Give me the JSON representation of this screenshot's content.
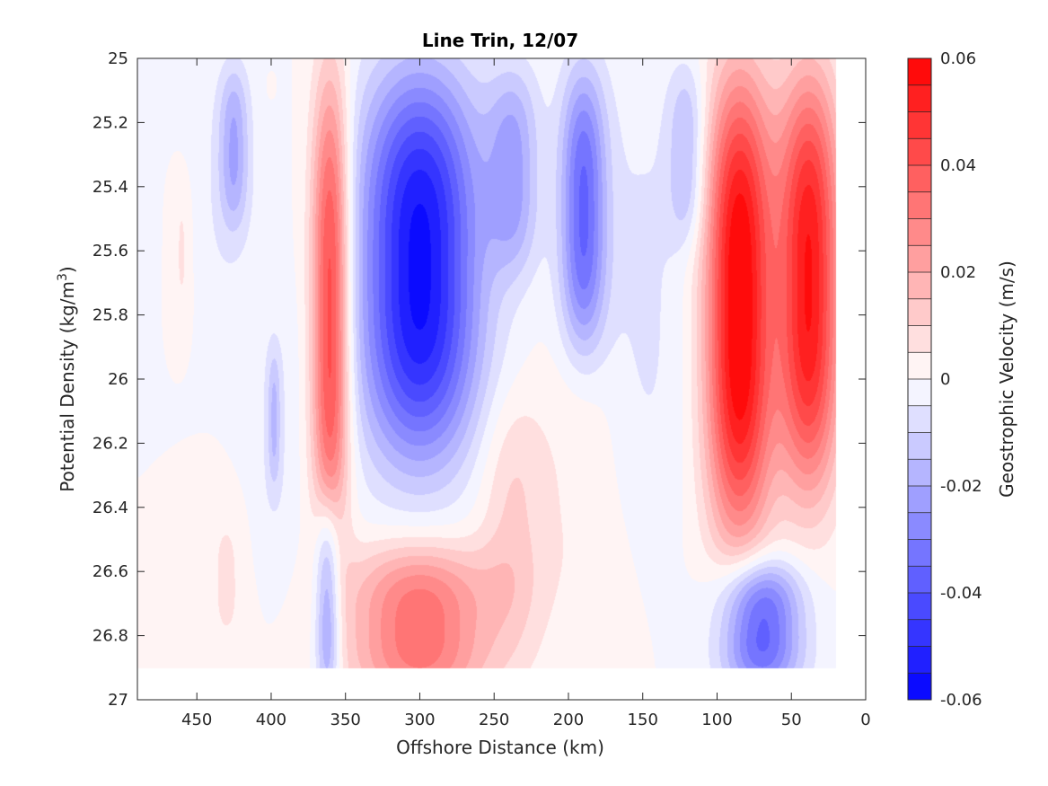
{
  "chart_data": {
    "type": "heatmap",
    "subtype": "filled-contour",
    "title": "Line Trin, 12/07",
    "xlabel": "Offshore Distance (km)",
    "ylabel": "Potential Density (kg/m",
    "ylabel_sup": "3",
    "ylabel_close": ")",
    "colorbar_label": "Geostrophic Velocity (m/s)",
    "x_reversed": true,
    "y_reversed": true,
    "xlim": [
      490,
      0
    ],
    "ylim": [
      25,
      27
    ],
    "xticks": [
      450,
      400,
      350,
      300,
      250,
      200,
      150,
      100,
      50,
      0
    ],
    "xtick_labels": [
      "450",
      "400",
      "350",
      "300",
      "250",
      "200",
      "150",
      "100",
      "50",
      "0"
    ],
    "yticks": [
      25,
      25.2,
      25.4,
      25.6,
      25.8,
      26,
      26.2,
      26.4,
      26.6,
      26.8,
      27
    ],
    "ytick_labels": [
      "25",
      "25.2",
      "25.4",
      "25.6",
      "25.8",
      "26",
      "26.2",
      "26.4",
      "26.6",
      "26.8",
      "27"
    ],
    "colorbar_range": [
      -0.06,
      0.06
    ],
    "colorbar_levels": 24,
    "colorbar_ticks": [
      0.06,
      0.04,
      0.02,
      0,
      -0.02,
      -0.04,
      -0.06
    ],
    "colorbar_tick_labels": [
      "0.06",
      "0.04",
      "0.02",
      "0",
      "-0.02",
      "-0.04",
      "-0.06"
    ],
    "colors": {
      "negative": "#0000ff",
      "zero": "#ffffff",
      "positive": "#ff0000"
    },
    "features": [
      {
        "x_center": 460,
        "x_halfwidth": 9,
        "y_top": 25.35,
        "y_bottom": 25.85,
        "peak": 0.006
      },
      {
        "x_center": 430,
        "x_halfwidth": 30,
        "y_top": 25.0,
        "y_bottom": 25.85,
        "peak": -0.005
      },
      {
        "x_center": 425,
        "x_halfwidth": 14,
        "y_top": 25.0,
        "y_bottom": 25.55,
        "peak": -0.017
      },
      {
        "x_center": 400,
        "x_halfwidth": 3,
        "y_top": 25.05,
        "y_bottom": 25.12,
        "peak": 0.005
      },
      {
        "x_center": 398,
        "x_halfwidth": 24,
        "y_top": 25.7,
        "y_bottom": 26.65,
        "peak": -0.005
      },
      {
        "x_center": 398,
        "x_halfwidth": 6,
        "y_top": 25.9,
        "y_bottom": 26.35,
        "peak": -0.012
      },
      {
        "x_center": 360,
        "x_halfwidth": 18,
        "y_top": 25.0,
        "y_bottom": 26.55,
        "peak": 0.046
      },
      {
        "x_center": 300,
        "x_halfwidth": 57,
        "y_top": 25.0,
        "y_bottom": 26.3,
        "peak": -0.057
      },
      {
        "x_center": 237,
        "x_halfwidth": 25,
        "y_top": 25.0,
        "y_bottom": 25.7,
        "peak": -0.02
      },
      {
        "x_center": 190,
        "x_halfwidth": 22,
        "y_top": 25.0,
        "y_bottom": 25.95,
        "peak": -0.035
      },
      {
        "x_center": 150,
        "x_halfwidth": 48,
        "y_top": 25.0,
        "y_bottom": 26.55,
        "peak": -0.006
      },
      {
        "x_center": 120,
        "x_halfwidth": 18,
        "y_top": 25.0,
        "y_bottom": 25.6,
        "peak": -0.016
      },
      {
        "x_center": 85,
        "x_halfwidth": 32,
        "y_top": 25.0,
        "y_bottom": 26.55,
        "peak": 0.062
      },
      {
        "x_center": 38,
        "x_halfwidth": 30,
        "y_top": 25.0,
        "y_bottom": 26.4,
        "peak": 0.055
      },
      {
        "x_center": 238,
        "x_halfwidth": 32,
        "y_top": 26.0,
        "y_bottom": 26.9,
        "peak": 0.011
      },
      {
        "x_center": 300,
        "x_halfwidth": 68,
        "y_top": 26.5,
        "y_bottom": 27.05,
        "peak": 0.034
      },
      {
        "x_center": 190,
        "x_halfwidth": 45,
        "y_top": 25.8,
        "y_bottom": 26.9,
        "peak": 0.005
      },
      {
        "x_center": 430,
        "x_halfwidth": 20,
        "y_top": 26.35,
        "y_bottom": 26.9,
        "peak": 0.006
      },
      {
        "x_center": 362,
        "x_halfwidth": 12,
        "y_top": 26.35,
        "y_bottom": 27.05,
        "peak": -0.027
      },
      {
        "x_center": 70,
        "x_halfwidth": 38,
        "y_top": 26.55,
        "y_bottom": 27.0,
        "peak": -0.038
      }
    ],
    "data_extent": {
      "x_max": 490,
      "y_bottom_limit": 26.9,
      "right_edge_x": 20
    }
  }
}
